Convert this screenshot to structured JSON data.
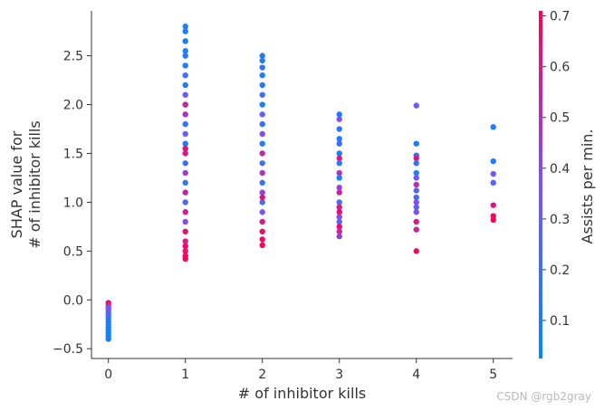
{
  "chart_data": {
    "type": "scatter",
    "xlabel": "# of inhibitor kills",
    "ylabel_lines": [
      "SHAP value for",
      "# of inhibitor kills"
    ],
    "colorbar_label": "Assists per min.",
    "x_ticks": [
      0,
      1,
      2,
      3,
      4,
      5
    ],
    "y_ticks": [
      -0.5,
      0.0,
      0.5,
      1.0,
      1.5,
      2.0,
      2.5
    ],
    "y_tick_labels": [
      "−0.5",
      "0.0",
      "0.5",
      "1.0",
      "1.5",
      "2.0",
      "2.5"
    ],
    "colorbar_ticks": [
      0.1,
      0.2,
      0.3,
      0.4,
      0.5,
      0.6,
      0.7
    ],
    "colorbar_tick_labels": [
      "0.1",
      "0.2",
      "0.3",
      "0.4",
      "0.5",
      "0.6",
      "0.7"
    ],
    "xlim": [
      -0.22,
      5.25
    ],
    "ylim": [
      -0.6,
      2.96
    ],
    "color_range": [
      0.025,
      0.71
    ],
    "colormap": [
      "#008afb",
      "#7c52ff",
      "#ff0052"
    ],
    "grid": false,
    "points": [
      {
        "x": 0,
        "y": -0.03,
        "c": 0.65
      },
      {
        "x": 0,
        "y": -0.06,
        "c": 0.55
      },
      {
        "x": 0,
        "y": -0.1,
        "c": 0.45
      },
      {
        "x": 0,
        "y": -0.13,
        "c": 0.2
      },
      {
        "x": 0,
        "y": -0.16,
        "c": 0.3
      },
      {
        "x": 0,
        "y": -0.19,
        "c": 0.1
      },
      {
        "x": 0,
        "y": -0.22,
        "c": 0.15
      },
      {
        "x": 0,
        "y": -0.25,
        "c": 0.08
      },
      {
        "x": 0,
        "y": -0.28,
        "c": 0.12
      },
      {
        "x": 0,
        "y": -0.31,
        "c": 0.05
      },
      {
        "x": 0,
        "y": -0.34,
        "c": 0.1
      },
      {
        "x": 0,
        "y": -0.37,
        "c": 0.06
      },
      {
        "x": 0,
        "y": -0.4,
        "c": 0.09
      },
      {
        "x": 0,
        "y": -0.08,
        "c": 0.35
      },
      {
        "x": 1,
        "y": 2.8,
        "c": 0.1
      },
      {
        "x": 1,
        "y": 2.75,
        "c": 0.12
      },
      {
        "x": 1,
        "y": 2.65,
        "c": 0.08
      },
      {
        "x": 1,
        "y": 2.55,
        "c": 0.1
      },
      {
        "x": 1,
        "y": 2.5,
        "c": 0.15
      },
      {
        "x": 1,
        "y": 2.4,
        "c": 0.1
      },
      {
        "x": 1,
        "y": 2.3,
        "c": 0.2
      },
      {
        "x": 1,
        "y": 2.2,
        "c": 0.12
      },
      {
        "x": 1,
        "y": 2.1,
        "c": 0.3
      },
      {
        "x": 1,
        "y": 2.0,
        "c": 0.1
      },
      {
        "x": 1,
        "y": 1.9,
        "c": 0.5
      },
      {
        "x": 1,
        "y": 1.8,
        "c": 0.15
      },
      {
        "x": 1,
        "y": 1.7,
        "c": 0.35
      },
      {
        "x": 1,
        "y": 1.6,
        "c": 0.12
      },
      {
        "x": 1,
        "y": 1.5,
        "c": 0.6
      },
      {
        "x": 1,
        "y": 1.4,
        "c": 0.2
      },
      {
        "x": 1,
        "y": 1.3,
        "c": 0.45
      },
      {
        "x": 1,
        "y": 1.2,
        "c": 0.15
      },
      {
        "x": 1,
        "y": 1.1,
        "c": 0.55
      },
      {
        "x": 1,
        "y": 1.0,
        "c": 0.25
      },
      {
        "x": 1,
        "y": 0.9,
        "c": 0.6
      },
      {
        "x": 1,
        "y": 0.8,
        "c": 0.4
      },
      {
        "x": 1,
        "y": 0.7,
        "c": 0.65
      },
      {
        "x": 1,
        "y": 0.6,
        "c": 0.6
      },
      {
        "x": 1,
        "y": 0.55,
        "c": 0.68
      },
      {
        "x": 1,
        "y": 0.5,
        "c": 0.65
      },
      {
        "x": 1,
        "y": 0.45,
        "c": 0.7
      },
      {
        "x": 1,
        "y": 0.42,
        "c": 0.68
      },
      {
        "x": 1,
        "y": 2.0,
        "c": 0.55
      },
      {
        "x": 1,
        "y": 1.55,
        "c": 0.65
      },
      {
        "x": 2,
        "y": 2.5,
        "c": 0.1
      },
      {
        "x": 2,
        "y": 2.45,
        "c": 0.12
      },
      {
        "x": 2,
        "y": 2.38,
        "c": 0.15
      },
      {
        "x": 2,
        "y": 2.3,
        "c": 0.1
      },
      {
        "x": 2,
        "y": 2.2,
        "c": 0.12
      },
      {
        "x": 2,
        "y": 2.1,
        "c": 0.2
      },
      {
        "x": 2,
        "y": 2.0,
        "c": 0.1
      },
      {
        "x": 2,
        "y": 1.9,
        "c": 0.3
      },
      {
        "x": 2,
        "y": 1.8,
        "c": 0.15
      },
      {
        "x": 2,
        "y": 1.7,
        "c": 0.4
      },
      {
        "x": 2,
        "y": 1.6,
        "c": 0.12
      },
      {
        "x": 2,
        "y": 1.5,
        "c": 0.55
      },
      {
        "x": 2,
        "y": 1.4,
        "c": 0.2
      },
      {
        "x": 2,
        "y": 1.3,
        "c": 0.5
      },
      {
        "x": 2,
        "y": 1.2,
        "c": 0.15
      },
      {
        "x": 2,
        "y": 1.1,
        "c": 0.45
      },
      {
        "x": 2,
        "y": 1.0,
        "c": 0.2
      },
      {
        "x": 2,
        "y": 0.9,
        "c": 0.35
      },
      {
        "x": 2,
        "y": 0.8,
        "c": 0.6
      },
      {
        "x": 2,
        "y": 0.7,
        "c": 0.65
      },
      {
        "x": 2,
        "y": 0.62,
        "c": 0.68
      },
      {
        "x": 2,
        "y": 0.56,
        "c": 0.7
      },
      {
        "x": 2,
        "y": 1.05,
        "c": 0.62
      },
      {
        "x": 3,
        "y": 1.9,
        "c": 0.1
      },
      {
        "x": 3,
        "y": 1.85,
        "c": 0.4
      },
      {
        "x": 3,
        "y": 1.75,
        "c": 0.15
      },
      {
        "x": 3,
        "y": 1.65,
        "c": 0.12
      },
      {
        "x": 3,
        "y": 1.6,
        "c": 0.2
      },
      {
        "x": 3,
        "y": 1.5,
        "c": 0.1
      },
      {
        "x": 3,
        "y": 1.45,
        "c": 0.6
      },
      {
        "x": 3,
        "y": 1.4,
        "c": 0.15
      },
      {
        "x": 3,
        "y": 1.3,
        "c": 0.5
      },
      {
        "x": 3,
        "y": 1.25,
        "c": 0.1
      },
      {
        "x": 3,
        "y": 1.15,
        "c": 0.45
      },
      {
        "x": 3,
        "y": 1.1,
        "c": 0.55
      },
      {
        "x": 3,
        "y": 1.0,
        "c": 0.2
      },
      {
        "x": 3,
        "y": 0.95,
        "c": 0.6
      },
      {
        "x": 3,
        "y": 0.9,
        "c": 0.65
      },
      {
        "x": 3,
        "y": 0.85,
        "c": 0.4
      },
      {
        "x": 3,
        "y": 0.8,
        "c": 0.3
      },
      {
        "x": 3,
        "y": 0.75,
        "c": 0.65
      },
      {
        "x": 3,
        "y": 0.7,
        "c": 0.55
      },
      {
        "x": 3,
        "y": 0.65,
        "c": 0.45
      },
      {
        "x": 4,
        "y": 1.99,
        "c": 0.35
      },
      {
        "x": 4,
        "y": 1.6,
        "c": 0.1
      },
      {
        "x": 4,
        "y": 1.48,
        "c": 0.2
      },
      {
        "x": 4,
        "y": 1.45,
        "c": 0.6
      },
      {
        "x": 4,
        "y": 1.4,
        "c": 0.15
      },
      {
        "x": 4,
        "y": 1.3,
        "c": 0.1
      },
      {
        "x": 4,
        "y": 1.25,
        "c": 0.35
      },
      {
        "x": 4,
        "y": 1.18,
        "c": 0.5
      },
      {
        "x": 4,
        "y": 1.12,
        "c": 0.25
      },
      {
        "x": 4,
        "y": 1.05,
        "c": 0.2
      },
      {
        "x": 4,
        "y": 1.0,
        "c": 0.4
      },
      {
        "x": 4,
        "y": 0.95,
        "c": 0.3
      },
      {
        "x": 4,
        "y": 0.9,
        "c": 0.35
      },
      {
        "x": 4,
        "y": 0.8,
        "c": 0.6
      },
      {
        "x": 4,
        "y": 0.72,
        "c": 0.55
      },
      {
        "x": 4,
        "y": 0.5,
        "c": 0.68
      },
      {
        "x": 5,
        "y": 1.77,
        "c": 0.1
      },
      {
        "x": 5,
        "y": 1.42,
        "c": 0.12
      },
      {
        "x": 5,
        "y": 1.29,
        "c": 0.35
      },
      {
        "x": 5,
        "y": 1.2,
        "c": 0.25
      },
      {
        "x": 5,
        "y": 0.97,
        "c": 0.6
      },
      {
        "x": 5,
        "y": 0.86,
        "c": 0.65
      },
      {
        "x": 5,
        "y": 0.82,
        "c": 0.7
      }
    ]
  },
  "watermark": "CSDN @rgb2gray"
}
